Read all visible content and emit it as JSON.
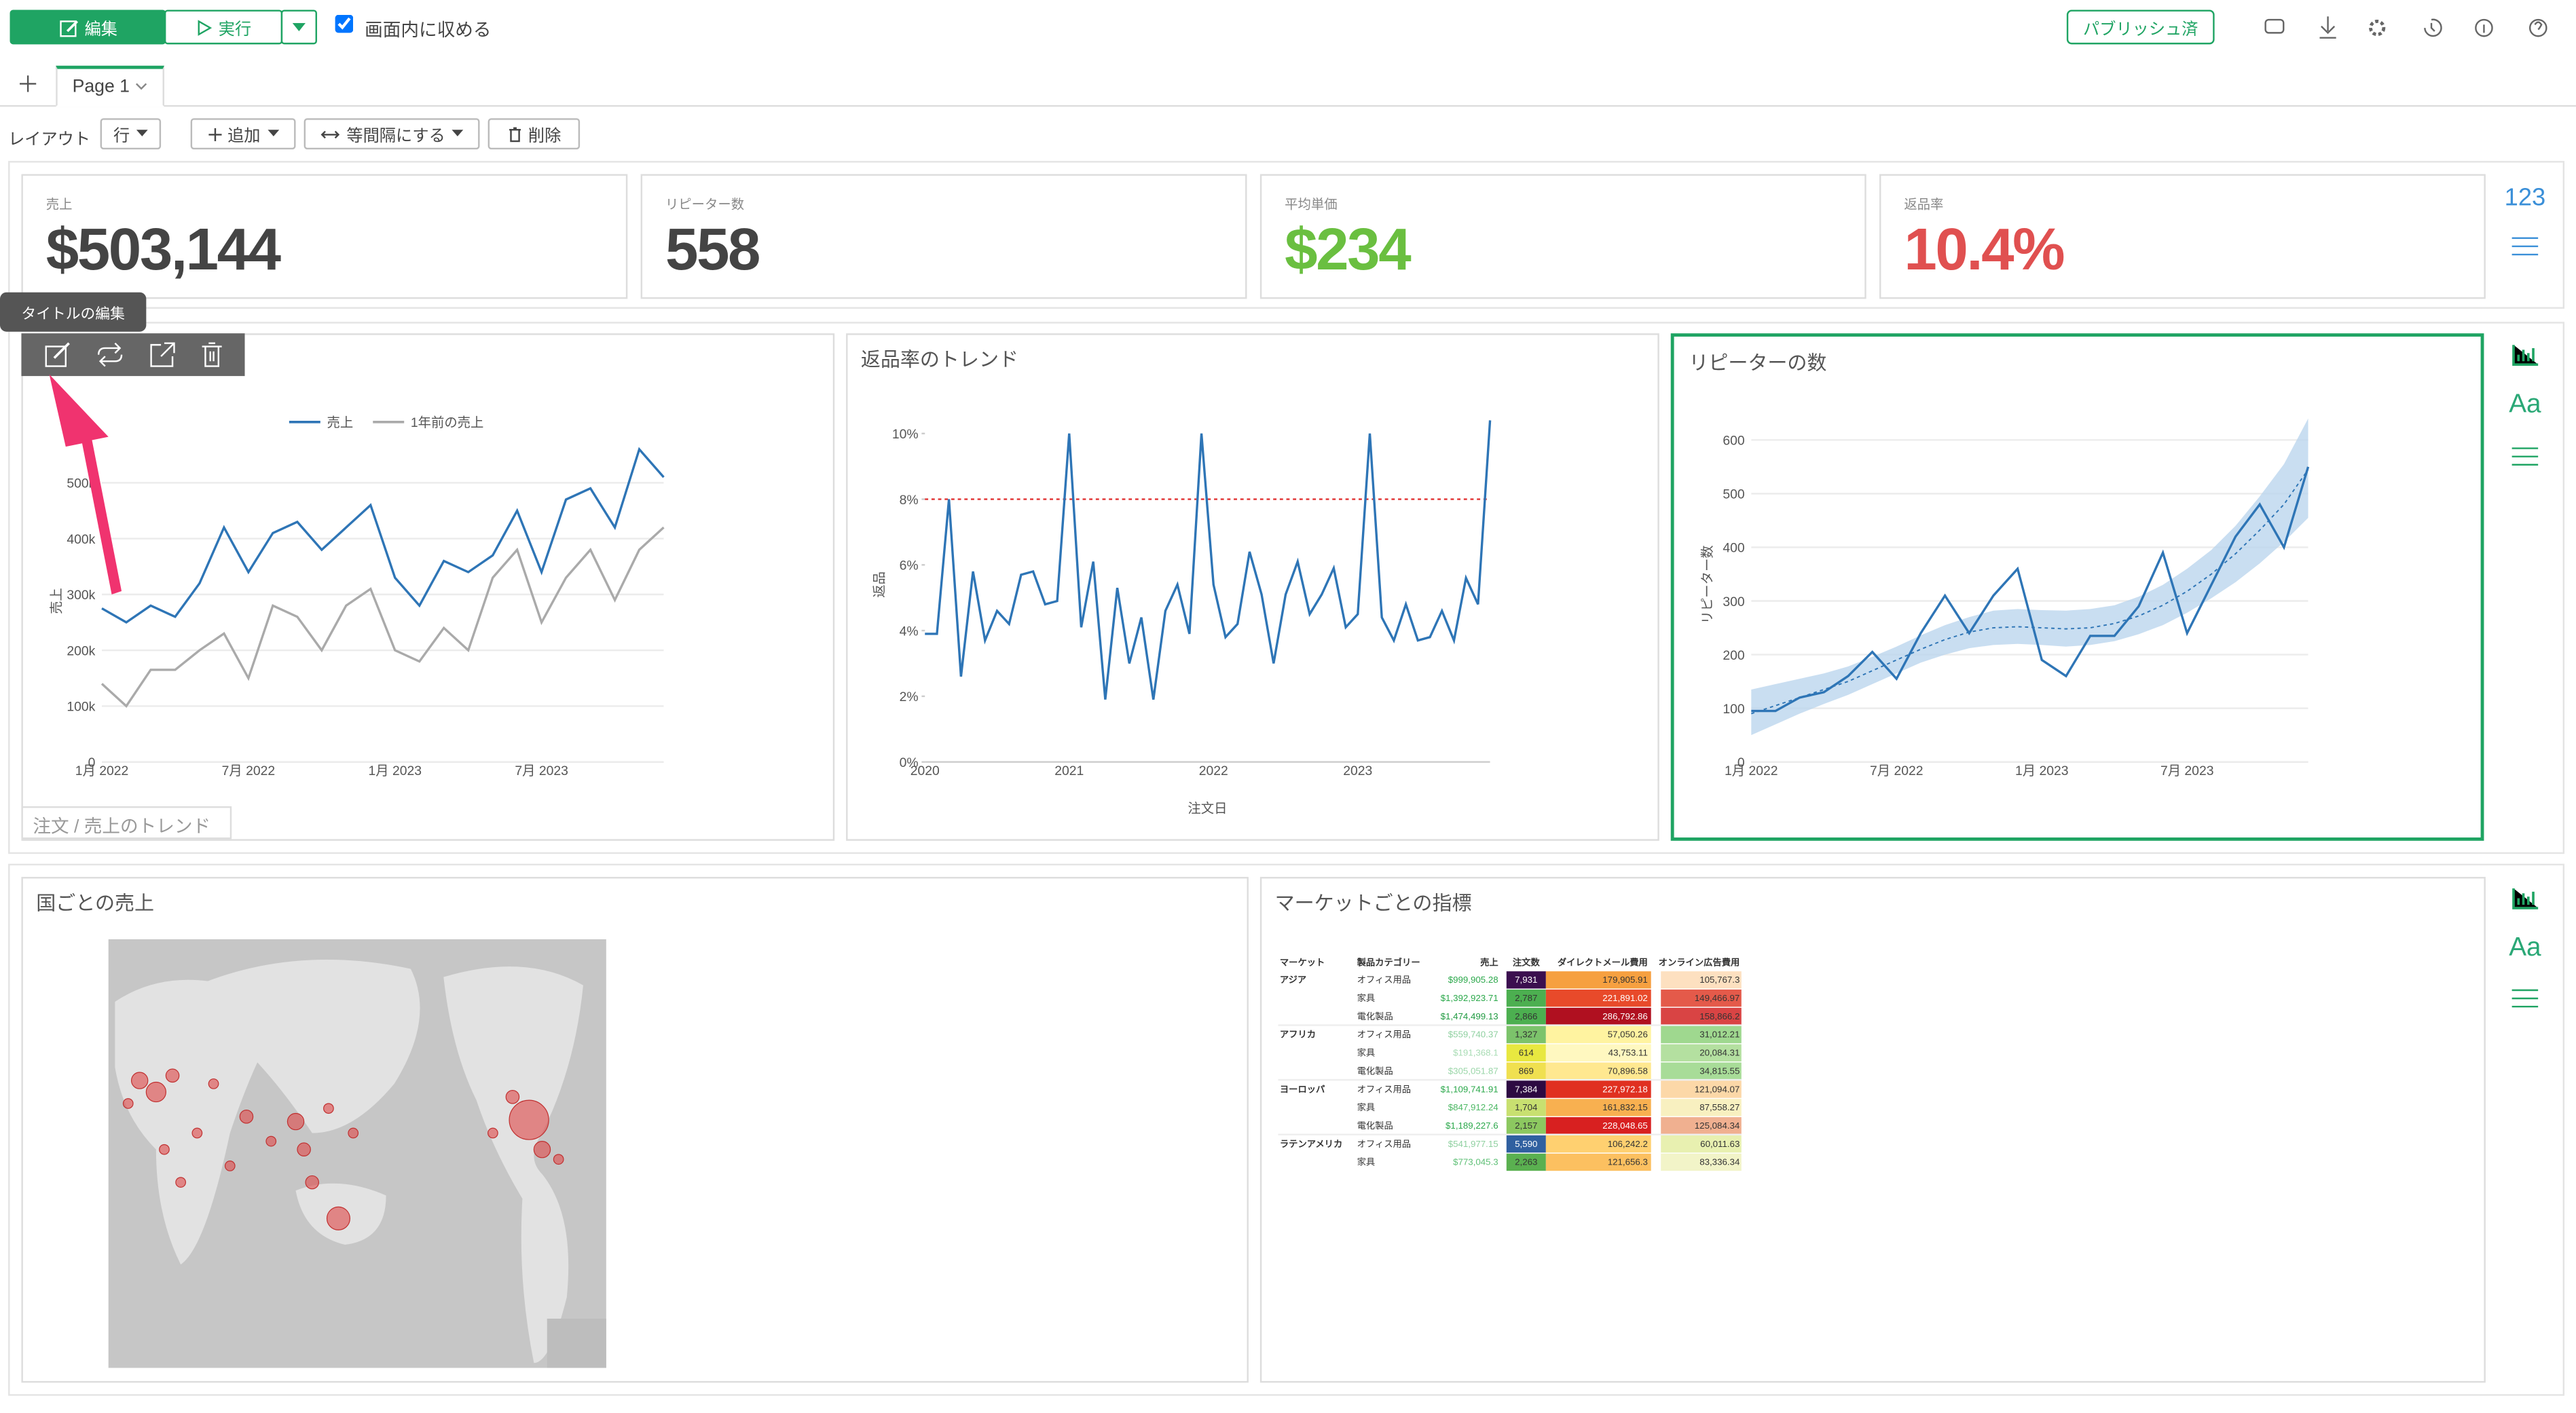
{
  "toolbar": {
    "edit": "編集",
    "run": "実行",
    "fit": "画面内に収める",
    "published": "パブリッシュ済"
  },
  "tabs": {
    "page": "Page 1"
  },
  "layout_bar": {
    "label": "レイアウト",
    "row": "行",
    "add": "追加",
    "spacing": "等間隔にする",
    "delete": "削除"
  },
  "kpis": [
    {
      "label": "売上",
      "value": "$503,144",
      "color": "#444444"
    },
    {
      "label": "リピーター数",
      "value": "558",
      "color": "#444444"
    },
    {
      "label": "平均単価",
      "value": "$234",
      "color": "#6abf40"
    },
    {
      "label": "返品率",
      "value": "10.4%",
      "color": "#e05050"
    }
  ],
  "side_icons": {
    "number": "123",
    "text": "Aa"
  },
  "tooltip": "タイトルの編集",
  "chart_data": [
    {
      "type": "line",
      "footer": "注文 / 売上のトレンド",
      "y_label": "売上",
      "grid": true,
      "legend": "top",
      "categories": [
        "1月 2022",
        null,
        null,
        null,
        null,
        null,
        "7月 2022",
        null,
        null,
        null,
        null,
        null,
        "1月 2023",
        null,
        null,
        null,
        null,
        null,
        "7月 2023",
        null,
        null,
        null,
        null,
        null
      ],
      "series": [
        {
          "name": "売上",
          "color": "#2e75b6",
          "values": [
            275000,
            250000,
            280000,
            260000,
            320000,
            420000,
            340000,
            410000,
            430000,
            380000,
            420000,
            460000,
            330000,
            280000,
            360000,
            340000,
            370000,
            450000,
            340000,
            470000,
            490000,
            420000,
            560000,
            510000
          ]
        },
        {
          "name": "1年前の売上",
          "color": "#aaaaaa",
          "values": [
            140000,
            100000,
            165000,
            165000,
            200000,
            230000,
            150000,
            280000,
            260000,
            200000,
            280000,
            310000,
            200000,
            180000,
            240000,
            200000,
            330000,
            380000,
            250000,
            330000,
            380000,
            290000,
            380000,
            420000
          ]
        }
      ],
      "ylim": [
        0,
        550000
      ],
      "yticks": [
        0,
        {
          "value": 100000,
          "label": "100k"
        },
        {
          "value": 200000,
          "label": "200k"
        },
        {
          "value": 300000,
          "label": "300k"
        },
        {
          "value": 400000,
          "label": "400k"
        },
        {
          "value": 500000,
          "label": "500k"
        }
      ]
    },
    {
      "type": "line",
      "title": "返品率のトレンド",
      "x_label": "注文日",
      "y_label": "返品",
      "grid": false,
      "color": "#2e75b6",
      "categories": [
        "2020",
        null,
        null,
        null,
        null,
        null,
        null,
        null,
        null,
        null,
        null,
        null,
        "2021",
        null,
        null,
        null,
        null,
        null,
        null,
        null,
        null,
        null,
        null,
        null,
        "2022",
        null,
        null,
        null,
        null,
        null,
        null,
        null,
        null,
        null,
        null,
        null,
        "2023",
        null,
        null,
        null,
        null,
        null,
        null,
        null,
        null,
        null,
        null,
        null
      ],
      "values": [
        3.9,
        3.9,
        8.0,
        2.6,
        5.8,
        3.7,
        4.6,
        4.2,
        5.7,
        5.8,
        4.8,
        4.9,
        10.0,
        4.1,
        6.1,
        1.9,
        5.3,
        3.0,
        4.4,
        1.9,
        4.6,
        5.4,
        3.9,
        10.0,
        5.4,
        3.8,
        4.2,
        6.4,
        5.1,
        3.0,
        5.1,
        6.1,
        4.5,
        5.1,
        5.9,
        4.1,
        4.5,
        10.0,
        4.4,
        3.7,
        4.8,
        3.7,
        3.8,
        4.6,
        3.7,
        5.6,
        4.8,
        10.4
      ],
      "reference_line": {
        "value": 8,
        "color": "#e03030"
      },
      "ylim": [
        0,
        10.5
      ],
      "yticks": [
        {
          "value": 0,
          "label": "0%"
        },
        {
          "value": 2,
          "label": "2%"
        },
        {
          "value": 4,
          "label": "4%"
        },
        {
          "value": 6,
          "label": "6%"
        },
        {
          "value": 8,
          "label": "8%"
        },
        {
          "value": 10,
          "label": "10%"
        }
      ]
    },
    {
      "type": "line",
      "title": "リピーターの数",
      "y_label": "リピーター数",
      "grid": true,
      "color": "#2e75b6",
      "band_color": "#bcd6ee",
      "categories": [
        "1月 2022",
        null,
        null,
        null,
        null,
        null,
        "7月 2022",
        null,
        null,
        null,
        null,
        null,
        "1月 2023",
        null,
        null,
        null,
        null,
        null,
        "7月 2023",
        null,
        null,
        null,
        null,
        null
      ],
      "values": [
        95,
        95,
        120,
        130,
        160,
        205,
        155,
        240,
        310,
        240,
        310,
        360,
        190,
        160,
        235,
        235,
        290,
        390,
        240,
        330,
        420,
        480,
        400,
        550
      ],
      "trend": [
        90,
        105,
        120,
        135,
        150,
        170,
        190,
        210,
        228,
        242,
        250,
        252,
        250,
        248,
        250,
        258,
        272,
        292,
        318,
        350,
        388,
        432,
        480,
        545
      ],
      "band_lower": [
        50,
        70,
        90,
        108,
        125,
        145,
        165,
        185,
        200,
        212,
        218,
        220,
        218,
        215,
        218,
        225,
        238,
        255,
        278,
        305,
        335,
        370,
        410,
        455
      ],
      "band_upper": [
        135,
        145,
        155,
        165,
        178,
        196,
        215,
        236,
        255,
        270,
        282,
        285,
        283,
        282,
        285,
        292,
        308,
        330,
        360,
        395,
        440,
        495,
        555,
        640
      ],
      "ylim": [
        0,
        650
      ],
      "yticks": [
        0,
        100,
        200,
        300,
        400,
        500,
        600
      ]
    }
  ],
  "map": {
    "title": "国ごとの売上"
  },
  "table": {
    "title": "マーケットごとの指標",
    "headers": [
      "マーケット",
      "製品カテゴリー",
      "売上",
      "注文数",
      "ダイレクトメール費用",
      "オンライン広告費用"
    ],
    "rows": [
      {
        "cells": [
          "アジア",
          "オフィス用品",
          "$999,905.28",
          "7,931",
          "179,905.91",
          "105,767.3"
        ],
        "fills": [
          "#2aa84a",
          "#3b0f4f",
          "#f6a040",
          "#fde0c0"
        ]
      },
      {
        "cells": [
          null,
          "家具",
          "$1,392,923.71",
          "2,787",
          "221,891.02",
          "149,466.97"
        ],
        "fills": [
          "#2aa84a",
          "#4caf50",
          "#e84a2a",
          "#e45a4a"
        ]
      },
      {
        "cells": [
          null,
          "電化製品",
          "$1,474,499.13",
          "2,866",
          "286,792.86",
          "158,866.2"
        ],
        "fills": [
          "#1f9a40",
          "#4caf50",
          "#b01020",
          "#d94444"
        ]
      },
      {
        "cells": [
          "アフリカ",
          "オフィス用品",
          "$559,740.37",
          "1,327",
          "57,050.26",
          "31,012.21"
        ],
        "fills": [
          "#8fd0a0",
          "#7cc36b",
          "#fff3a0",
          "#9fd88f"
        ]
      },
      {
        "cells": [
          null,
          "家具",
          "$191,368.1",
          "614",
          "43,753.11",
          "20,084.31"
        ],
        "fills": [
          "#a8dcb4",
          "#e8e840",
          "#fff8c0",
          "#b4e0a0"
        ]
      },
      {
        "cells": [
          null,
          "電化製品",
          "$305,051.87",
          "869",
          "70,896.58",
          "34,815.55"
        ],
        "fills": [
          "#9ad6a8",
          "#f0e050",
          "#ffe890",
          "#a8dc98"
        ]
      },
      {
        "cells": [
          "ヨーロッパ",
          "オフィス用品",
          "$1,109,741.91",
          "7,384",
          "227,972.18",
          "121,094.07"
        ],
        "fills": [
          "#2aa84a",
          "#2d0a42",
          "#e03020",
          "#fcd8a8"
        ]
      },
      {
        "cells": [
          null,
          "家具",
          "$847,912.24",
          "1,704",
          "161,832.15",
          "87,558.27"
        ],
        "fills": [
          "#4cb864",
          "#c8e070",
          "#f8b050",
          "#f8f0c0"
        ]
      },
      {
        "cells": [
          null,
          "電化製品",
          "$1,189,227.6",
          "2,157",
          "228,048.65",
          "125,084.34"
        ],
        "fills": [
          "#2aa84a",
          "#8cc860",
          "#d82020",
          "#f0b090"
        ]
      },
      {
        "cells": [
          "ラテンアメリカ",
          "オフィス用品",
          "$541,977.15",
          "5,590",
          "106,242.2",
          "60,011.63"
        ],
        "fills": [
          "#8fd0a0",
          "#3060a0",
          "#ffd070",
          "#e8f0b0"
        ]
      },
      {
        "cells": [
          null,
          "家具",
          "$773,045.3",
          "2,263",
          "121,656.3",
          "83,336.34"
        ],
        "fills": [
          "#5cbf74",
          "#5ab050",
          "#fcc060",
          "#f2f4c8"
        ]
      }
    ]
  }
}
